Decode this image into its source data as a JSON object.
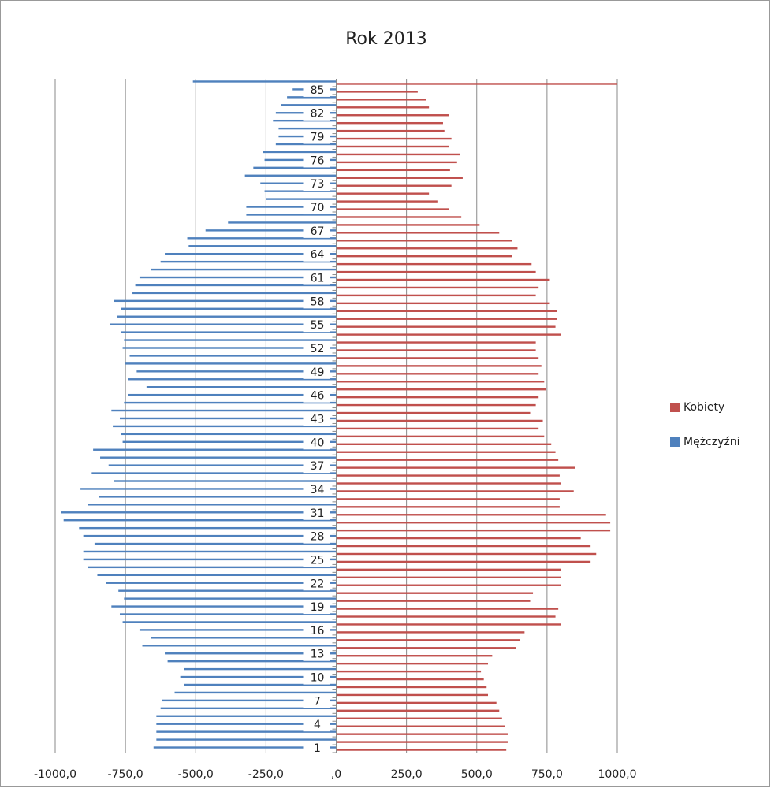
{
  "chart_data": {
    "type": "bar",
    "orientation": "horizontal",
    "title": "Rok 2013",
    "categories": [
      "1",
      null,
      null,
      "4",
      null,
      null,
      "7",
      null,
      null,
      "10",
      null,
      null,
      "13",
      null,
      null,
      "16",
      null,
      null,
      "19",
      null,
      null,
      "22",
      null,
      null,
      "25",
      null,
      null,
      "28",
      null,
      null,
      "31",
      null,
      null,
      "34",
      null,
      null,
      "37",
      null,
      null,
      "40",
      null,
      null,
      "43",
      null,
      null,
      "46",
      null,
      null,
      "49",
      null,
      null,
      "52",
      null,
      null,
      "55",
      null,
      null,
      "58",
      null,
      null,
      "61",
      null,
      null,
      "64",
      null,
      null,
      "67",
      null,
      null,
      "70",
      null,
      null,
      "73",
      null,
      null,
      "76",
      null,
      null,
      "79",
      null,
      null,
      "82",
      null,
      null,
      "85",
      null
    ],
    "series": [
      {
        "name": "Kobiety",
        "color": "#c0504d",
        "values": [
          605,
          610,
          610,
          600,
          590,
          580,
          570,
          540,
          535,
          525,
          515,
          540,
          555,
          640,
          655,
          670,
          800,
          780,
          790,
          690,
          700,
          800,
          800,
          800,
          905,
          925,
          905,
          870,
          975,
          975,
          960,
          795,
          795,
          845,
          800,
          795,
          850,
          790,
          780,
          765,
          740,
          720,
          735,
          690,
          710,
          720,
          745,
          740,
          720,
          730,
          720,
          710,
          710,
          800,
          780,
          785,
          785,
          760,
          710,
          720,
          760,
          710,
          695,
          625,
          645,
          625,
          580,
          510,
          445,
          400,
          360,
          330,
          410,
          450,
          405,
          430,
          440,
          400,
          410,
          385,
          380,
          400,
          330,
          320,
          290,
          1000
        ]
      },
      {
        "name": "Mężczyźni",
        "color": "#4f81bd",
        "values": [
          -650,
          -640,
          -640,
          -640,
          -640,
          -625,
          -620,
          -575,
          -540,
          -555,
          -540,
          -600,
          -610,
          -690,
          -660,
          -700,
          -760,
          -770,
          -800,
          -755,
          -775,
          -820,
          -850,
          -885,
          -900,
          -900,
          -860,
          -900,
          -915,
          -970,
          -980,
          -885,
          -845,
          -910,
          -790,
          -870,
          -810,
          -840,
          -865,
          -760,
          -765,
          -795,
          -770,
          -800,
          -755,
          -740,
          -675,
          -740,
          -710,
          -750,
          -735,
          -760,
          -755,
          -765,
          -805,
          -780,
          -765,
          -790,
          -725,
          -715,
          -700,
          -660,
          -625,
          -610,
          -525,
          -530,
          -465,
          -385,
          -320,
          -320,
          -250,
          -255,
          -270,
          -325,
          -295,
          -255,
          -260,
          -215,
          -205,
          -205,
          -225,
          -215,
          -195,
          -175,
          -155,
          -510
        ]
      }
    ],
    "xlim": [
      -1000,
      1000
    ],
    "xticks": [
      {
        "value": -1000,
        "label": "-1000,0"
      },
      {
        "value": -750,
        "label": "-750,0"
      },
      {
        "value": -500,
        "label": "-500,0"
      },
      {
        "value": -250,
        "label": "-250,0"
      },
      {
        "value": 0,
        "label": ",0"
      },
      {
        "value": 250,
        "label": "250,0"
      },
      {
        "value": 500,
        "label": "500,0"
      },
      {
        "value": 750,
        "label": "750,0"
      },
      {
        "value": 1000,
        "label": "1000,0"
      }
    ],
    "grid": true,
    "legend": "right"
  }
}
